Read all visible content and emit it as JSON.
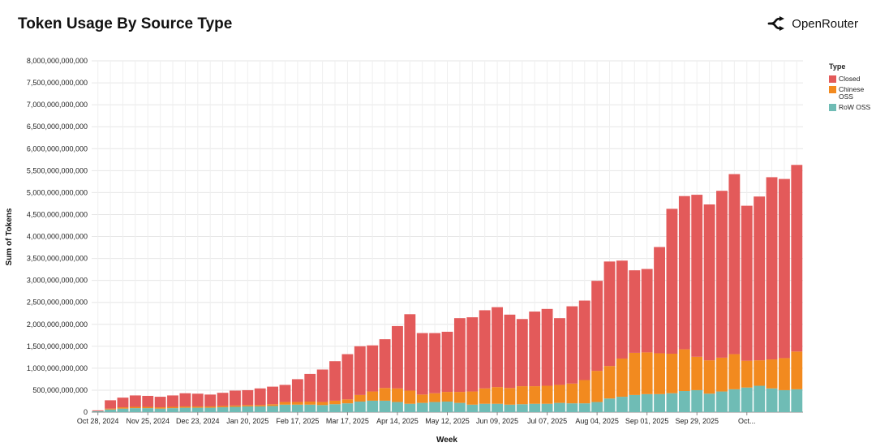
{
  "header": {
    "title": "Token Usage By Source Type",
    "brand": "OpenRouter"
  },
  "colors": {
    "Closed": "#e35a5a",
    "Chinese OSS": "#f28a1f",
    "RoW OSS": "#6fbcb5"
  },
  "chart_data": {
    "type": "bar",
    "stacked": true,
    "title": "Token Usage By Source Type",
    "xlabel": "Week",
    "ylabel": "Sum of Tokens",
    "ylim": [
      0,
      8000000000000
    ],
    "yticks": [
      0,
      500000000000,
      1000000000000,
      1500000000000,
      2000000000000,
      2500000000000,
      3000000000000,
      3500000000000,
      4000000000000,
      4500000000000,
      5000000000000,
      5500000000000,
      6000000000000,
      6500000000000,
      7000000000000,
      7500000000000,
      8000000000000
    ],
    "ytick_labels": [
      "0",
      "500,000,000,000",
      "1,000,000,000,000",
      "1,500,000,000,000",
      "2,000,000,000,000",
      "2,500,000,000,000",
      "3,000,000,000,000",
      "3,500,000,000,000",
      "4,000,000,000,000",
      "4,500,000,000,000",
      "5,000,000,000,000",
      "5,500,000,000,000",
      "6,000,000,000,000",
      "6,500,000,000,000",
      "7,000,000,000,000",
      "7,500,000,000,000",
      "8,000,000,000,000"
    ],
    "grid": true,
    "legend_title": "Type",
    "legend_position": "right",
    "x_tick_labels": [
      {
        "index": 0,
        "label": "Oct 28, 2024"
      },
      {
        "index": 4,
        "label": "Nov 25, 2024"
      },
      {
        "index": 8,
        "label": "Dec 23, 2024"
      },
      {
        "index": 12,
        "label": "Jan 20, 2025"
      },
      {
        "index": 16,
        "label": "Feb 17, 2025"
      },
      {
        "index": 20,
        "label": "Mar 17, 2025"
      },
      {
        "index": 24,
        "label": "Apr 14, 2025"
      },
      {
        "index": 28,
        "label": "May 12, 2025"
      },
      {
        "index": 32,
        "label": "Jun 09, 2025"
      },
      {
        "index": 36,
        "label": "Jul 07, 2025"
      },
      {
        "index": 40,
        "label": "Aug 04, 2025"
      },
      {
        "index": 44,
        "label": "Sep 01, 2025"
      },
      {
        "index": 48,
        "label": "Sep 29, 2025"
      },
      {
        "index": 52,
        "label": "Oct..."
      }
    ],
    "weeks": [
      "Oct 28, 2024",
      "Nov 04, 2024",
      "Nov 11, 2024",
      "Nov 18, 2024",
      "Nov 25, 2024",
      "Dec 02, 2024",
      "Dec 09, 2024",
      "Dec 16, 2024",
      "Dec 23, 2024",
      "Dec 30, 2024",
      "Jan 06, 2025",
      "Jan 13, 2025",
      "Jan 20, 2025",
      "Jan 27, 2025",
      "Feb 03, 2025",
      "Feb 10, 2025",
      "Feb 17, 2025",
      "Feb 24, 2025",
      "Mar 03, 2025",
      "Mar 10, 2025",
      "Mar 17, 2025",
      "Mar 24, 2025",
      "Mar 31, 2025",
      "Apr 07, 2025",
      "Apr 14, 2025",
      "Apr 21, 2025",
      "Apr 28, 2025",
      "May 05, 2025",
      "May 12, 2025",
      "May 19, 2025",
      "May 26, 2025",
      "Jun 02, 2025",
      "Jun 09, 2025",
      "Jun 16, 2025",
      "Jun 23, 2025",
      "Jun 30, 2025",
      "Jul 07, 2025",
      "Jul 14, 2025",
      "Jul 21, 2025",
      "Jul 28, 2025",
      "Aug 04, 2025",
      "Aug 11, 2025",
      "Aug 18, 2025",
      "Aug 25, 2025",
      "Sep 01, 2025",
      "Sep 08, 2025",
      "Sep 15, 2025",
      "Sep 22, 2025",
      "Sep 29, 2025",
      "Oct 06, 2025",
      "Oct 13, 2025",
      "Oct 20, 2025",
      "Oct 27, 2025",
      "Nov 03, 2025",
      "Nov 10, 2025",
      "Nov 17, 2025",
      "Nov 24, 2025"
    ],
    "series": [
      {
        "name": "RoW OSS",
        "values": [
          20,
          60,
          80,
          90,
          90,
          80,
          90,
          100,
          100,
          100,
          110,
          120,
          130,
          130,
          140,
          170,
          170,
          170,
          160,
          180,
          200,
          240,
          260,
          260,
          230,
          190,
          210,
          230,
          240,
          210,
          170,
          190,
          190,
          170,
          180,
          190,
          190,
          210,
          200,
          200,
          230,
          310,
          350,
          390,
          410,
          410,
          430,
          480,
          500,
          420,
          470,
          520,
          560,
          600,
          540,
          500,
          520
        ]
      },
      {
        "name": "Chinese OSS",
        "values": [
          0,
          20,
          30,
          30,
          30,
          30,
          30,
          30,
          30,
          30,
          30,
          30,
          30,
          30,
          40,
          60,
          60,
          70,
          70,
          80,
          90,
          150,
          210,
          290,
          310,
          300,
          190,
          200,
          220,
          250,
          300,
          350,
          380,
          380,
          410,
          400,
          410,
          410,
          450,
          530,
          710,
          740,
          870,
          960,
          950,
          930,
          900,
          950,
          760,
          760,
          770,
          800,
          610,
          580,
          660,
          730,
          860
        ]
      },
      {
        "name": "Closed",
        "values": [
          20,
          190,
          220,
          260,
          250,
          240,
          260,
          300,
          290,
          270,
          300,
          340,
          340,
          380,
          400,
          390,
          520,
          630,
          740,
          900,
          1030,
          1110,
          1050,
          1110,
          1420,
          1740,
          1400,
          1370,
          1370,
          1680,
          1690,
          1780,
          1820,
          1670,
          1530,
          1700,
          1750,
          1520,
          1760,
          1810,
          2050,
          2380,
          2230,
          1880,
          1900,
          2420,
          3300,
          3490,
          3690,
          3550,
          3800,
          4100,
          3530,
          3730,
          4150,
          4080,
          4250
        ]
      }
    ],
    "note_units": "values in billions of tokens"
  }
}
